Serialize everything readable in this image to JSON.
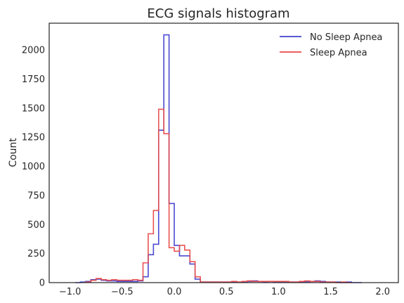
{
  "chart_data": {
    "type": "histogram",
    "title": "ECG signals histogram",
    "xlabel": "",
    "ylabel": "Count",
    "xlim": [
      -1.2,
      2.15
    ],
    "ylim": [
      0,
      2230
    ],
    "xticks": [
      -1.0,
      -0.5,
      0.0,
      0.5,
      1.0,
      1.5,
      2.0
    ],
    "xtick_labels": [
      "−1.0",
      "−0.5",
      "0.0",
      "0.5",
      "1.0",
      "1.5",
      "2.0"
    ],
    "yticks": [
      0,
      250,
      500,
      750,
      1000,
      1250,
      1500,
      1750,
      2000
    ],
    "ytick_labels": [
      "0",
      "250",
      "500",
      "750",
      "1000",
      "1250",
      "1500",
      "1750",
      "2000"
    ],
    "grid": false,
    "legend_position": "top-right",
    "series": [
      {
        "name": "No Sleep Apnea",
        "color": "#4040d0",
        "bins": [
          [
            -0.95,
            0
          ],
          [
            -0.9,
            5
          ],
          [
            -0.85,
            10
          ],
          [
            -0.8,
            25
          ],
          [
            -0.75,
            30
          ],
          [
            -0.7,
            20
          ],
          [
            -0.65,
            15
          ],
          [
            -0.6,
            15
          ],
          [
            -0.55,
            10
          ],
          [
            -0.5,
            10
          ],
          [
            -0.45,
            10
          ],
          [
            -0.4,
            10
          ],
          [
            -0.35,
            15
          ],
          [
            -0.3,
            50
          ],
          [
            -0.25,
            240
          ],
          [
            -0.2,
            330
          ],
          [
            -0.15,
            1310
          ],
          [
            -0.1,
            2130
          ],
          [
            -0.05,
            680
          ],
          [
            0.0,
            320
          ],
          [
            0.05,
            230
          ],
          [
            0.1,
            230
          ],
          [
            0.15,
            160
          ],
          [
            0.2,
            30
          ],
          [
            0.25,
            5
          ],
          [
            0.3,
            5
          ],
          [
            0.35,
            5
          ],
          [
            0.4,
            5
          ],
          [
            0.45,
            5
          ],
          [
            0.5,
            5
          ],
          [
            0.55,
            5
          ],
          [
            0.6,
            5
          ],
          [
            0.65,
            5
          ],
          [
            0.7,
            10
          ],
          [
            0.75,
            15
          ],
          [
            0.8,
            10
          ],
          [
            0.85,
            5
          ],
          [
            0.9,
            10
          ],
          [
            0.95,
            5
          ],
          [
            1.0,
            5
          ],
          [
            1.05,
            5
          ],
          [
            1.1,
            5
          ],
          [
            1.15,
            5
          ],
          [
            1.2,
            5
          ],
          [
            1.25,
            5
          ],
          [
            1.3,
            10
          ],
          [
            1.35,
            15
          ],
          [
            1.4,
            10
          ],
          [
            1.45,
            5
          ],
          [
            1.5,
            5
          ],
          [
            1.55,
            5
          ],
          [
            1.6,
            0
          ],
          [
            1.65,
            5
          ],
          [
            1.7,
            0
          ],
          [
            1.75,
            0
          ]
        ],
        "end": 1.8
      },
      {
        "name": "Sleep Apnea",
        "color": "#e84a4a",
        "bins": [
          [
            -0.85,
            5
          ],
          [
            -0.8,
            20
          ],
          [
            -0.75,
            35
          ],
          [
            -0.7,
            25
          ],
          [
            -0.65,
            20
          ],
          [
            -0.6,
            25
          ],
          [
            -0.55,
            20
          ],
          [
            -0.5,
            20
          ],
          [
            -0.45,
            20
          ],
          [
            -0.4,
            25
          ],
          [
            -0.35,
            20
          ],
          [
            -0.3,
            170
          ],
          [
            -0.25,
            420
          ],
          [
            -0.2,
            620
          ],
          [
            -0.15,
            1490
          ],
          [
            -0.1,
            1280
          ],
          [
            -0.05,
            300
          ],
          [
            0.0,
            270
          ],
          [
            0.05,
            320
          ],
          [
            0.1,
            280
          ],
          [
            0.15,
            180
          ],
          [
            0.2,
            50
          ],
          [
            0.25,
            5
          ],
          [
            0.3,
            5
          ],
          [
            0.35,
            5
          ],
          [
            0.4,
            5
          ],
          [
            0.45,
            5
          ],
          [
            0.5,
            5
          ],
          [
            0.55,
            10
          ],
          [
            0.6,
            5
          ],
          [
            0.65,
            10
          ],
          [
            0.7,
            15
          ],
          [
            0.75,
            10
          ],
          [
            0.8,
            10
          ],
          [
            0.85,
            10
          ],
          [
            0.9,
            10
          ],
          [
            0.95,
            10
          ],
          [
            1.0,
            10
          ],
          [
            1.05,
            10
          ],
          [
            1.1,
            5
          ],
          [
            1.15,
            5
          ],
          [
            1.2,
            10
          ],
          [
            1.25,
            15
          ],
          [
            1.3,
            10
          ],
          [
            1.35,
            10
          ],
          [
            1.4,
            5
          ],
          [
            1.45,
            5
          ],
          [
            1.5,
            5
          ],
          [
            1.55,
            0
          ],
          [
            1.6,
            5
          ],
          [
            1.65,
            0
          ]
        ],
        "end": 1.7
      }
    ]
  }
}
